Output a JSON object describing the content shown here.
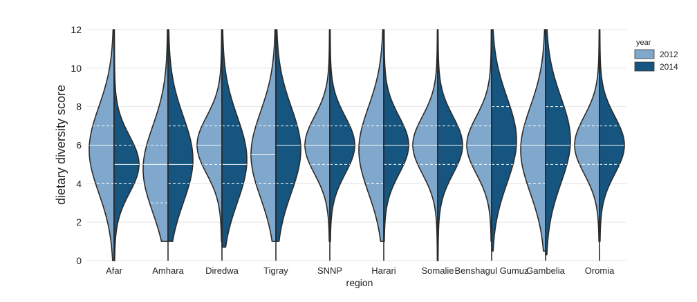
{
  "chart_data": {
    "type": "violin",
    "split": true,
    "xlabel": "region",
    "ylabel": "dietary diversity score",
    "ylim": [
      0,
      12
    ],
    "yticks": [
      0,
      2,
      4,
      6,
      8,
      10,
      12
    ],
    "grid": true,
    "legend": {
      "title": "year",
      "placement": "top-right-outside",
      "entries": [
        {
          "label": "2012",
          "color": "#7fa8cc"
        },
        {
          "label": "2014",
          "color": "#15557f"
        }
      ]
    },
    "categories": [
      "Afar",
      "Amhara",
      "Diredwa",
      "Tigray",
      "SNNP",
      "Harari",
      "Somalie",
      "Benshagul Gumuz",
      "Gambelia",
      "Oromia"
    ],
    "series": [
      {
        "name": "2012",
        "color": "#7fa8cc",
        "quartiles": [
          [
            4,
            6,
            7
          ],
          [
            3,
            5,
            6
          ],
          [
            5,
            6,
            7
          ],
          [
            4,
            5.5,
            7
          ],
          [
            5,
            6,
            7
          ],
          [
            4,
            6,
            7
          ],
          [
            5,
            6,
            7
          ],
          [
            5,
            6,
            7
          ],
          [
            4,
            6,
            7
          ],
          [
            5,
            6,
            7
          ]
        ],
        "range": [
          [
            0,
            12
          ],
          [
            1,
            12
          ],
          [
            1,
            12
          ],
          [
            1,
            12
          ],
          [
            1,
            12
          ],
          [
            1,
            12
          ],
          [
            0,
            12
          ],
          [
            1,
            12
          ],
          [
            0.5,
            12
          ],
          [
            1,
            12
          ]
        ]
      },
      {
        "name": "2014",
        "color": "#15557f",
        "quartiles": [
          [
            4,
            5,
            6
          ],
          [
            4,
            5,
            7
          ],
          [
            4,
            5,
            7
          ],
          [
            4,
            6,
            7
          ],
          [
            5,
            6,
            7
          ],
          [
            5,
            6,
            7
          ],
          [
            5,
            6,
            7
          ],
          [
            5,
            6,
            8
          ],
          [
            5,
            6,
            8
          ],
          [
            5,
            6,
            7
          ]
        ],
        "range": [
          [
            0,
            12
          ],
          [
            1,
            12
          ],
          [
            0.7,
            12
          ],
          [
            1,
            12
          ],
          [
            1,
            12
          ],
          [
            1,
            12
          ],
          [
            0,
            12
          ],
          [
            0.5,
            12
          ],
          [
            0.3,
            12
          ],
          [
            1,
            12
          ]
        ]
      }
    ]
  }
}
